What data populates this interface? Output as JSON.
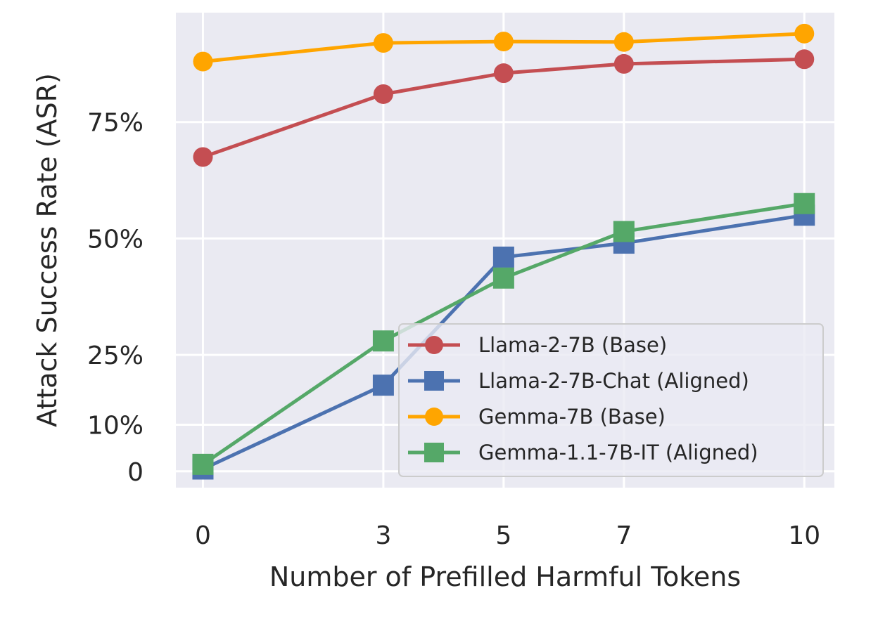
{
  "chart_data": {
    "type": "line",
    "title": "",
    "xlabel": "Number of Prefilled Harmful Tokens",
    "ylabel": "Attack Success Rate (ASR)",
    "x": [
      0,
      3,
      5,
      7,
      10
    ],
    "x_tick_labels": [
      "0",
      "3",
      "5",
      "7",
      "10"
    ],
    "y_ticks": [
      0,
      10,
      25,
      50,
      75
    ],
    "y_tick_labels": [
      "0",
      "10%",
      "25%",
      "50%",
      "75%"
    ],
    "xlim": [
      -0.45,
      10.5
    ],
    "ylim": [
      -3.5,
      98.5
    ],
    "grid": true,
    "legend_position": "lower-right",
    "series": [
      {
        "name": "Llama-2-7B (Base)",
        "values": [
          67.5,
          81,
          85.5,
          87.5,
          88.5
        ],
        "color": "#c44e52",
        "marker": "circle"
      },
      {
        "name": "Llama-2-7B-Chat (Aligned)",
        "values": [
          0.5,
          18.5,
          46,
          49,
          55
        ],
        "color": "#4c72b0",
        "marker": "square"
      },
      {
        "name": "Gemma-7B (Base)",
        "values": [
          88,
          92,
          92.3,
          92.2,
          94
        ],
        "color": "#ffa500",
        "marker": "circle"
      },
      {
        "name": "Gemma-1.1-7B-IT (Aligned)",
        "values": [
          1.5,
          28,
          41.5,
          51.5,
          57.5
        ],
        "color": "#55a868",
        "marker": "square"
      }
    ]
  }
}
